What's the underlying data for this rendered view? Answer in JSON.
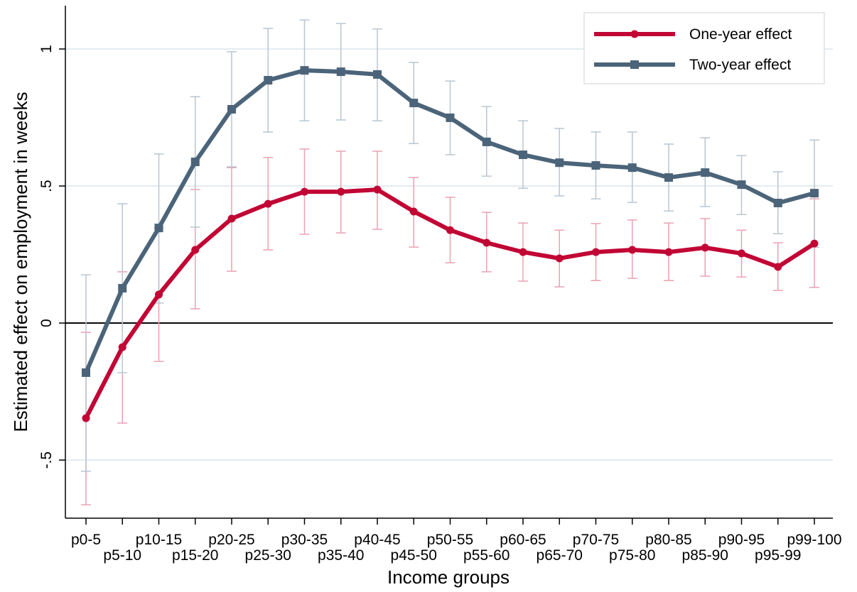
{
  "chart_data": {
    "type": "line",
    "x_label": "Income groups",
    "y_label": "Estimated effect on employment in weeks",
    "categories": [
      "p0-5",
      "p5-10",
      "p10-15",
      "p15-20",
      "p20-25",
      "p25-30",
      "p30-35",
      "p35-40",
      "p40-45",
      "p45-50",
      "p50-55",
      "p55-60",
      "p60-65",
      "p65-70",
      "p70-75",
      "p75-80",
      "p80-85",
      "p85-90",
      "p90-95",
      "p95-99",
      "p99-100"
    ],
    "series": [
      {
        "name": "One-year effect",
        "color": "#c10534",
        "marker": "circle",
        "values": [
          -0.347,
          -0.088,
          0.104,
          0.267,
          0.381,
          0.435,
          0.479,
          0.479,
          0.487,
          0.407,
          0.339,
          0.293,
          0.259,
          0.236,
          0.259,
          0.267,
          0.259,
          0.275,
          0.254,
          0.205,
          0.29
        ],
        "ci_lower": [
          -0.663,
          -0.365,
          -0.14,
          0.052,
          0.189,
          0.267,
          0.324,
          0.329,
          0.342,
          0.277,
          0.22,
          0.187,
          0.153,
          0.132,
          0.155,
          0.163,
          0.155,
          0.171,
          0.168,
          0.119,
          0.13
        ],
        "ci_upper": [
          -0.034,
          0.187,
          0.347,
          0.487,
          0.567,
          0.604,
          0.635,
          0.627,
          0.627,
          0.531,
          0.459,
          0.404,
          0.365,
          0.339,
          0.363,
          0.376,
          0.365,
          0.381,
          0.339,
          0.293,
          0.453
        ]
      },
      {
        "name": "Two-year effect",
        "color": "#4b6479",
        "marker": "square",
        "values": [
          -0.181,
          0.127,
          0.347,
          0.588,
          0.78,
          0.886,
          0.922,
          0.917,
          0.907,
          0.803,
          0.749,
          0.661,
          0.614,
          0.585,
          0.575,
          0.567,
          0.531,
          0.549,
          0.505,
          0.438,
          0.474
        ],
        "ci_lower": [
          -0.541,
          -0.181,
          0.073,
          0.35,
          0.57,
          0.697,
          0.738,
          0.741,
          0.738,
          0.655,
          0.614,
          0.536,
          0.492,
          0.464,
          0.453,
          0.44,
          0.409,
          0.425,
          0.396,
          0.326,
          0.277
        ],
        "ci_upper": [
          0.176,
          0.435,
          0.617,
          0.826,
          0.99,
          1.075,
          1.106,
          1.093,
          1.073,
          0.951,
          0.883,
          0.79,
          0.738,
          0.71,
          0.697,
          0.697,
          0.653,
          0.676,
          0.611,
          0.552,
          0.668
        ]
      }
    ],
    "ylim": [
      -0.712,
      1.158
    ],
    "yticks": [
      {
        "value": -0.5,
        "label": "-.5"
      },
      0,
      {
        "value": 0.5,
        "label": ".5"
      },
      1
    ],
    "grid": true,
    "yline": 0,
    "legend": "top-right"
  }
}
